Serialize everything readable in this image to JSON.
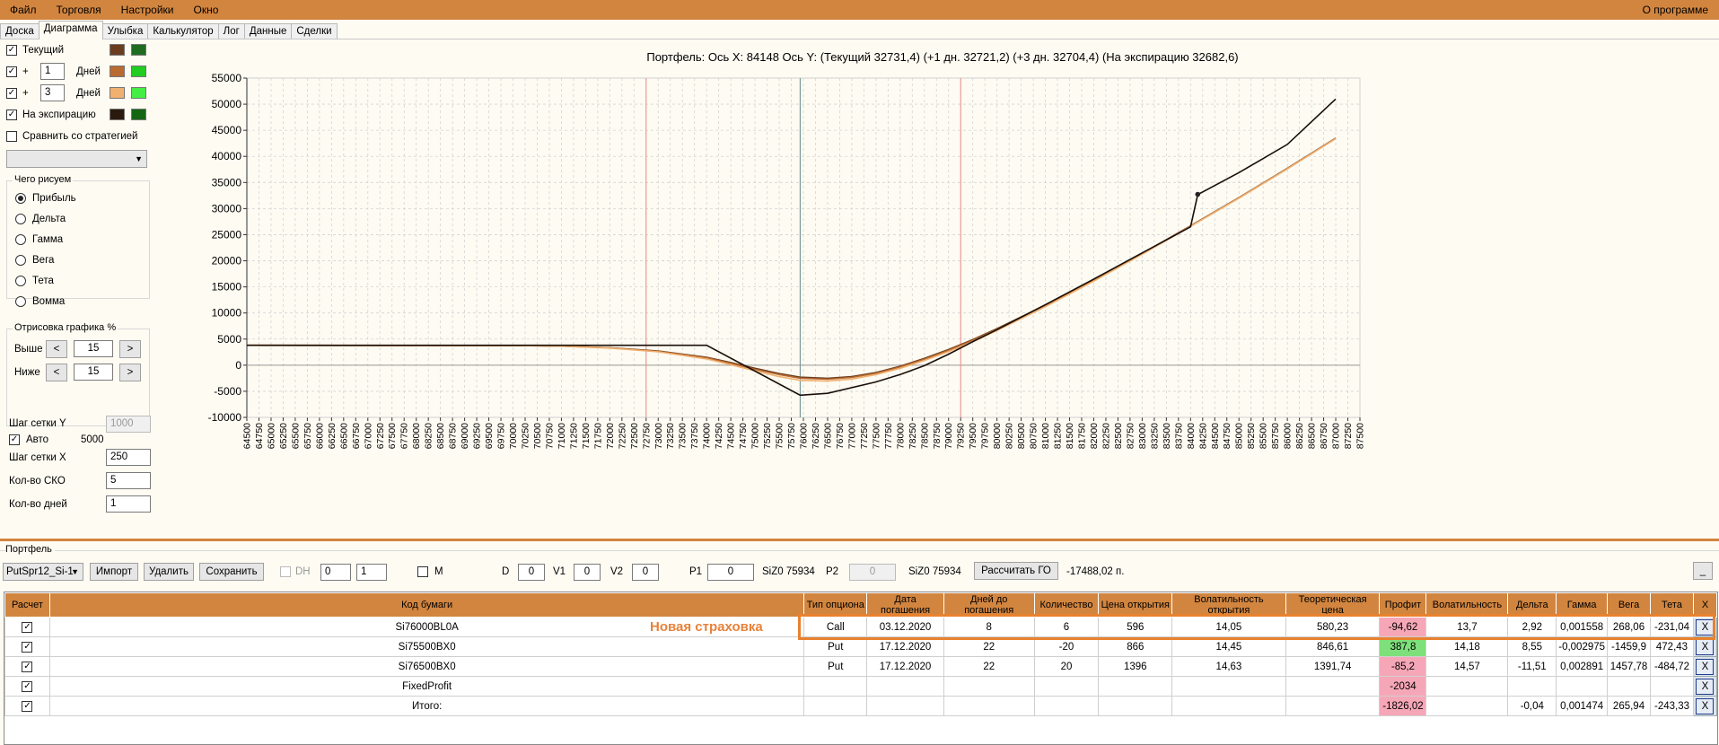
{
  "menu": {
    "items": [
      "Файл",
      "Торговля",
      "Настройки",
      "Окно"
    ],
    "about": "О программе"
  },
  "tabs": [
    "Доска",
    "Диаграмма",
    "Улыбка",
    "Калькулятор",
    "Лог",
    "Данные",
    "Сделки"
  ],
  "active_tab": "Диаграмма",
  "left": {
    "current_label": "Текущий",
    "plus": "+",
    "days_label": "Дней",
    "plus_days_1": "1",
    "plus_days_2": "3",
    "expiration_label": "На экспирацию",
    "compare_label": "Сравнить со стратегией",
    "draw_group": "Чего рисуем",
    "radios": [
      "Прибыль",
      "Дельта",
      "Гамма",
      "Вега",
      "Тета",
      "Вомма"
    ],
    "render_group": "Отрисовка графика %",
    "above_label": "Выше",
    "above_value": "15",
    "below_label": "Ниже",
    "below_value": "15",
    "btn_less": "<",
    "btn_more": ">",
    "grid_y_label": "Шаг сетки Y",
    "grid_y_value": "1000",
    "auto_label": "Авто",
    "auto_value": "5000",
    "grid_x_label": "Шаг сетки X",
    "grid_x_value": "250",
    "sko_label": "Кол-во СКО",
    "sko_value": "5",
    "days_count_label": "Кол-во дней",
    "days_count_value": "1"
  },
  "colors": {
    "current_a": "#6b3d1e",
    "current_b": "#1f6b1f",
    "d1_a": "#b86a30",
    "d1_b": "#22cc22",
    "d3_a": "#f0b070",
    "d3_b": "#44ee44",
    "exp_a": "#2a1a0e",
    "exp_b": "#146614"
  },
  "chart_data": {
    "type": "line",
    "title": "Портфель: Ось X: 84148 Ось Y:  (Текущий 32731,4)  (+1 дн. 32721,2)  (+3 дн. 32704,4)  (На экспирацию 32682,6)",
    "xlim": [
      64500,
      87500
    ],
    "ylim": [
      -10000,
      55000
    ],
    "x_tick_step": 250,
    "y_ticks": [
      -10000,
      -5000,
      0,
      5000,
      10000,
      15000,
      20000,
      25000,
      30000,
      35000,
      40000,
      45000,
      50000,
      55000
    ],
    "grid": true,
    "vlines": {
      "center": 75934,
      "red": [
        72750,
        79250
      ]
    },
    "marker": {
      "x": 84148,
      "y": 32731.4
    },
    "series": [
      {
        "name": "Текущий",
        "color": "#6b3d1e",
        "points": [
          [
            64500,
            3800
          ],
          [
            70000,
            3750
          ],
          [
            71000,
            3650
          ],
          [
            72000,
            3350
          ],
          [
            73000,
            2700
          ],
          [
            74000,
            1500
          ],
          [
            74500,
            500
          ],
          [
            75000,
            -600
          ],
          [
            75500,
            -1600
          ],
          [
            75934,
            -2300
          ],
          [
            76500,
            -2500
          ],
          [
            77000,
            -2200
          ],
          [
            77500,
            -1400
          ],
          [
            78000,
            -200
          ],
          [
            78500,
            1300
          ],
          [
            79000,
            3000
          ],
          [
            79500,
            4900
          ],
          [
            80000,
            7000
          ],
          [
            81000,
            11500
          ],
          [
            82000,
            16300
          ],
          [
            83000,
            21400
          ],
          [
            84000,
            26700
          ],
          [
            85000,
            32100
          ],
          [
            86000,
            37700
          ],
          [
            87000,
            43500
          ]
        ]
      },
      {
        "name": "+1 дн.",
        "color": "#b86a30",
        "points": [
          [
            64500,
            3800
          ],
          [
            70000,
            3750
          ],
          [
            71000,
            3650
          ],
          [
            72000,
            3330
          ],
          [
            73000,
            2650
          ],
          [
            74000,
            1400
          ],
          [
            74500,
            350
          ],
          [
            75000,
            -800
          ],
          [
            75500,
            -1800
          ],
          [
            75934,
            -2500
          ],
          [
            76500,
            -2700
          ],
          [
            77000,
            -2350
          ],
          [
            77500,
            -1550
          ],
          [
            78000,
            -350
          ],
          [
            78500,
            1150
          ],
          [
            79000,
            2850
          ],
          [
            79500,
            4750
          ],
          [
            80000,
            6850
          ],
          [
            81000,
            11350
          ],
          [
            82000,
            16200
          ],
          [
            83000,
            21300
          ],
          [
            84000,
            26650
          ],
          [
            85000,
            32050
          ],
          [
            86000,
            37650
          ],
          [
            87000,
            43450
          ]
        ]
      },
      {
        "name": "+3 дн.",
        "color": "#f0b070",
        "points": [
          [
            64500,
            3800
          ],
          [
            70000,
            3760
          ],
          [
            71000,
            3640
          ],
          [
            72000,
            3280
          ],
          [
            73000,
            2550
          ],
          [
            74000,
            1200
          ],
          [
            74500,
            100
          ],
          [
            75000,
            -1100
          ],
          [
            75500,
            -2200
          ],
          [
            75934,
            -2900
          ],
          [
            76500,
            -3050
          ],
          [
            77000,
            -2650
          ],
          [
            77500,
            -1800
          ],
          [
            78000,
            -600
          ],
          [
            78500,
            900
          ],
          [
            79000,
            2600
          ],
          [
            79500,
            4500
          ],
          [
            80000,
            6650
          ],
          [
            81000,
            11200
          ],
          [
            82000,
            16100
          ],
          [
            83000,
            21250
          ],
          [
            84000,
            26600
          ],
          [
            85000,
            32000
          ],
          [
            86000,
            37600
          ],
          [
            87000,
            43400
          ]
        ]
      },
      {
        "name": "На экспирацию",
        "color": "#1a0f08",
        "points": [
          [
            64500,
            3800
          ],
          [
            74000,
            3800
          ],
          [
            75934,
            -5750
          ],
          [
            76500,
            -5400
          ],
          [
            77500,
            -3200
          ],
          [
            78000,
            -1800
          ],
          [
            78500,
            -100
          ],
          [
            79000,
            2100
          ],
          [
            79500,
            4500
          ],
          [
            80000,
            6800
          ],
          [
            81000,
            11600
          ],
          [
            82000,
            16500
          ],
          [
            83000,
            21500
          ],
          [
            84000,
            26500
          ],
          [
            84148,
            32682.6
          ],
          [
            85000,
            36900
          ],
          [
            86000,
            42300
          ],
          [
            87000,
            51000
          ]
        ]
      }
    ]
  },
  "portfolio": {
    "label": "Портфель",
    "combo": "PutSpr12_Si-1",
    "import": "Импорт",
    "delete": "Удалить",
    "save": "Сохранить",
    "dh_label": "DH",
    "dh_v1": "0",
    "dh_v2": "1",
    "m_label": "M",
    "d_label": "D",
    "d_value": "0",
    "v1_label": "V1",
    "v1_value": "0",
    "v2_label": "V2",
    "v2_value": "0",
    "p1_label": "P1",
    "p1_value": "0",
    "p1_info": "SiZ0 75934",
    "p2_label": "P2",
    "p2_value": "0",
    "p2_info": "SiZ0 75934",
    "calc_go": "Рассчитать ГО",
    "go_value": "-17488,02 п.",
    "min_btn": "_"
  },
  "table": {
    "headers": [
      "Расчет",
      "Код бумаги",
      "Тип опциона",
      "Дата погашения",
      "Дней до погашения",
      "Количество",
      "Цена открытия",
      "Волатильность открытия",
      "Теоретическая цена",
      "Профит",
      "Волатильность",
      "Дельта",
      "Гамма",
      "Вега",
      "Тета",
      "X"
    ],
    "rows": [
      [
        "Si76000BL0A",
        "Call",
        "03.12.2020",
        "8",
        "6",
        "596",
        "14,05",
        "580,23",
        "-94,62",
        "13,7",
        "2,92",
        "0,001558",
        "268,06",
        "-231,04",
        "X"
      ],
      [
        "Si75500BX0",
        "Put",
        "17.12.2020",
        "22",
        "-20",
        "866",
        "14,45",
        "846,61",
        "387,8",
        "14,18",
        "8,55",
        "-0,002975",
        "-1459,9",
        "472,43",
        "X"
      ],
      [
        "Si76500BX0",
        "Put",
        "17.12.2020",
        "22",
        "20",
        "1396",
        "14,63",
        "1391,74",
        "-85,2",
        "14,57",
        "-11,51",
        "0,002891",
        "1457,78",
        "-484,72",
        "X"
      ],
      [
        "FixedProfit",
        "",
        "",
        "",
        "",
        "",
        "",
        "",
        "-2034",
        "",
        "",
        "",
        "",
        "",
        "X"
      ],
      [
        "Итого:",
        "",
        "",
        "",
        "",
        "",
        "",
        "",
        "-1826,02",
        "",
        "-0,04",
        "0,001474",
        "265,94",
        "-243,33",
        "X"
      ]
    ],
    "profit_colors": [
      "red",
      "grn",
      "red",
      "red",
      "red"
    ]
  },
  "annotation": "Новая страховка"
}
